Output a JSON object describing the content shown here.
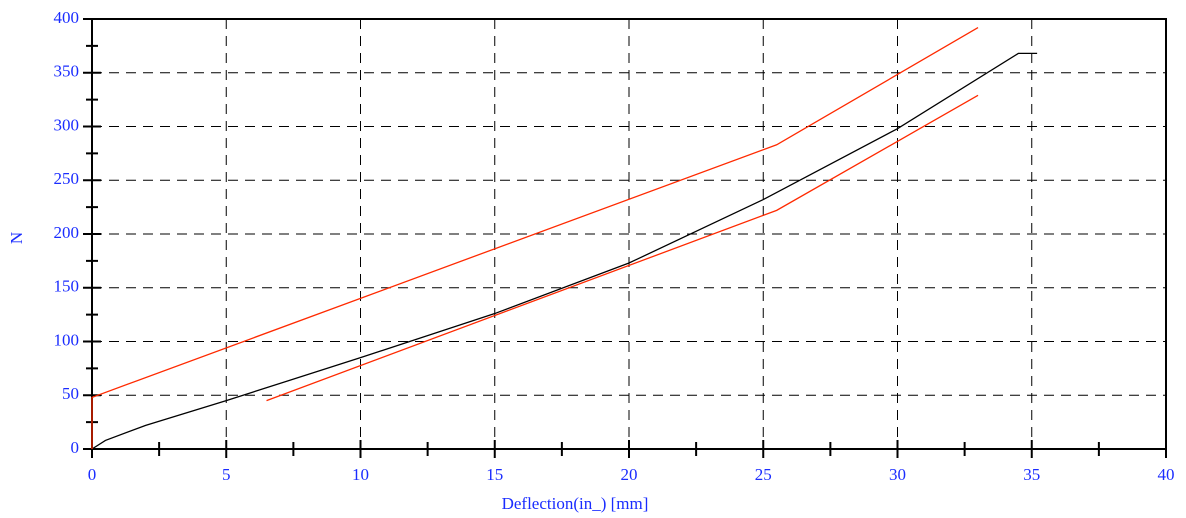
{
  "chart_data": {
    "type": "line",
    "x_label": "Deflection(in_) [mm]",
    "y_label": "N",
    "xlim": [
      0,
      40
    ],
    "xticks": [
      0,
      5,
      10,
      15,
      20,
      25,
      30,
      35,
      40
    ],
    "xminorticks": [
      2.5,
      7.5,
      12.5,
      17.5,
      22.5,
      27.5,
      32.5,
      37.5
    ],
    "ylim": [
      0,
      400
    ],
    "yticks": [
      0,
      50,
      100,
      150,
      200,
      250,
      300,
      350,
      400
    ],
    "yminorticks": [
      25,
      75,
      125,
      175,
      225,
      275,
      325,
      375
    ],
    "grid": true,
    "series": [
      {
        "color": "#000000",
        "x": [
          0,
          0.5,
          2,
          5,
          10,
          15,
          20,
          25,
          30,
          34.5,
          35.2
        ],
        "values": [
          0,
          8,
          22,
          45,
          85,
          126,
          173,
          232,
          298,
          368,
          368
        ]
      },
      {
        "color": "#ff2a00",
        "x": [
          0,
          0,
          25.5,
          33
        ],
        "values": [
          0,
          48,
          283,
          392
        ]
      },
      {
        "color": "#ff2a00",
        "x": [
          6.5,
          25.5,
          33
        ],
        "values": [
          45,
          222,
          329
        ]
      }
    ]
  }
}
